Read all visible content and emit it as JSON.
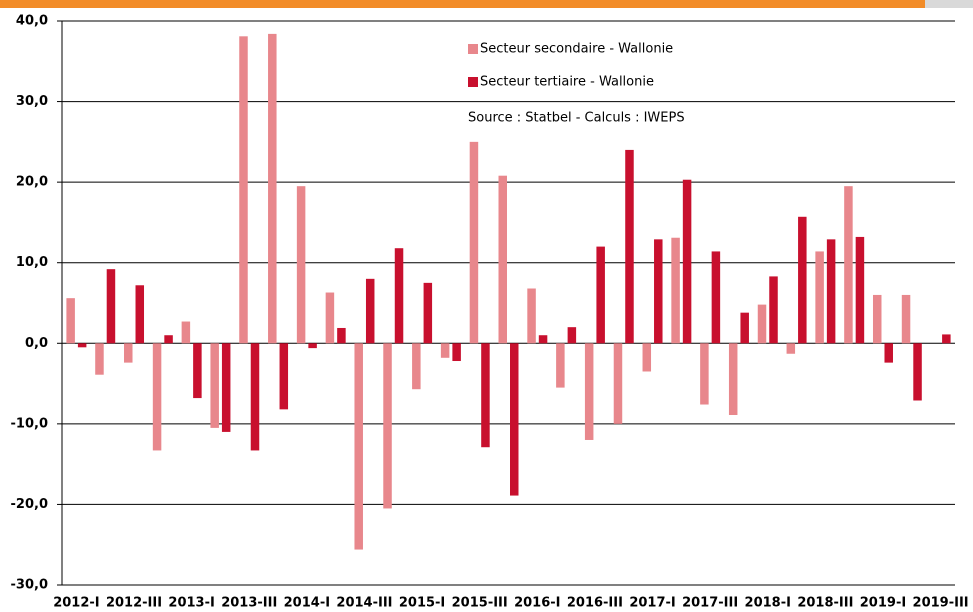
{
  "chart_data": {
    "type": "bar",
    "annotation": "Source : Statbel - Calculs : IWEPS",
    "categories": [
      "2012-I",
      null,
      "2012-III",
      null,
      "2013-I",
      null,
      "2013-III",
      null,
      "2014-I",
      null,
      "2014-III",
      null,
      "2015-I",
      null,
      "2015-III",
      null,
      "2016-I",
      null,
      "2016-III",
      null,
      "2017-I",
      null,
      "2017-III",
      null,
      "2018-I",
      null,
      "2018-III",
      null,
      "2019-I",
      null,
      "2019-III"
    ],
    "series": [
      {
        "name": "Secteur secondaire - Wallonie",
        "color": "#e8878c",
        "values": [
          5.6,
          -3.9,
          -2.4,
          -13.3,
          2.7,
          -10.5,
          38.1,
          38.4,
          19.5,
          6.3,
          -25.6,
          -20.5,
          -5.7,
          -1.8,
          25.0,
          20.8,
          6.8,
          -5.5,
          -12.0,
          -10.0,
          -3.5,
          13.1,
          -7.6,
          -8.9,
          4.8,
          -1.3,
          11.4,
          19.5,
          6.0,
          6.0,
          null
        ]
      },
      {
        "name": "Secteur tertiaire - Wallonie",
        "color": "#c8102e",
        "values": [
          -0.5,
          9.2,
          7.2,
          1.0,
          -6.8,
          -11.0,
          -13.3,
          -8.2,
          -0.6,
          1.9,
          8.0,
          11.8,
          7.5,
          -2.2,
          -12.9,
          -18.9,
          1.0,
          2.0,
          12.0,
          24.0,
          12.9,
          20.3,
          11.4,
          3.8,
          8.3,
          15.7,
          12.9,
          13.2,
          -2.4,
          -7.1,
          1.1
        ]
      }
    ],
    "ylim": [
      -30,
      40
    ],
    "yticks": [
      {
        "value": -30,
        "label": "-30,0"
      },
      {
        "value": -20,
        "label": "-20,0"
      },
      {
        "value": -10,
        "label": "-10,0"
      },
      {
        "value": 0,
        "label": "0,0"
      },
      {
        "value": 10,
        "label": "10,0"
      },
      {
        "value": 20,
        "label": "20,0"
      },
      {
        "value": 30,
        "label": "30,0"
      },
      {
        "value": 40,
        "label": "40,0"
      }
    ],
    "grid": true
  }
}
